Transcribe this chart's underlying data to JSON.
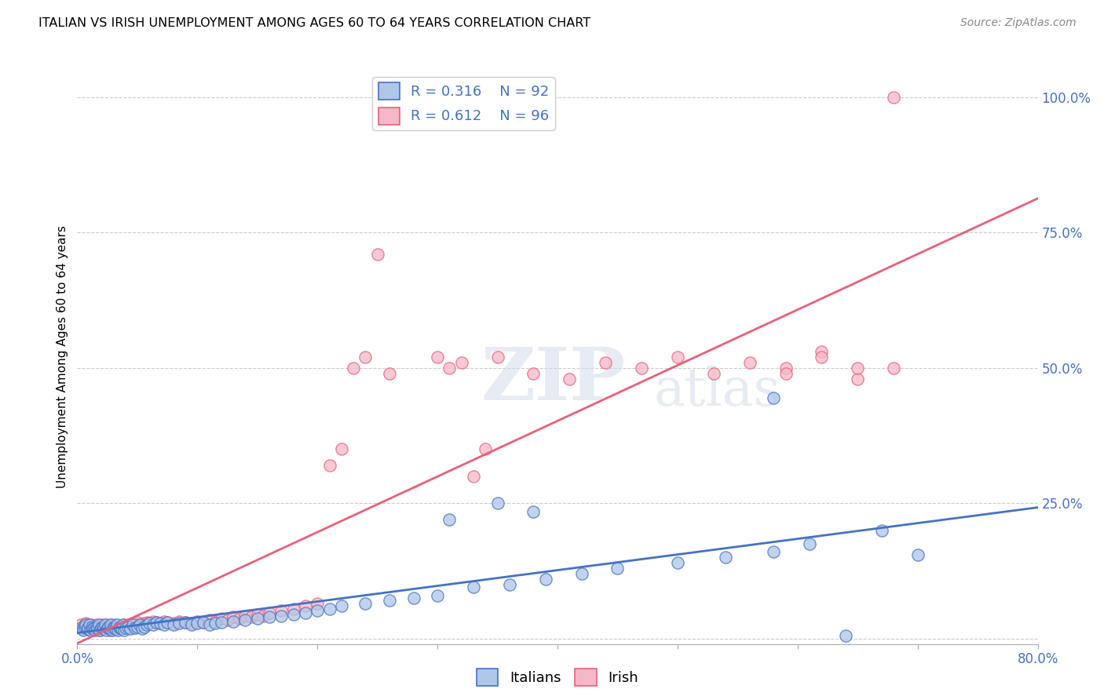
{
  "title": "ITALIAN VS IRISH UNEMPLOYMENT AMONG AGES 60 TO 64 YEARS CORRELATION CHART",
  "source": "Source: ZipAtlas.com",
  "ylabel": "Unemployment Among Ages 60 to 64 years",
  "xlim": [
    0.0,
    0.8
  ],
  "ylim": [
    -0.01,
    1.05
  ],
  "xticks": [
    0.0,
    0.1,
    0.2,
    0.3,
    0.4,
    0.5,
    0.6,
    0.7,
    0.8
  ],
  "xticklabels": [
    "0.0%",
    "",
    "",
    "",
    "",
    "",
    "",
    "",
    "80.0%"
  ],
  "ytick_positions": [
    0.0,
    0.25,
    0.5,
    0.75,
    1.0
  ],
  "yticklabels_right": [
    "",
    "25.0%",
    "50.0%",
    "75.0%",
    "100.0%"
  ],
  "legend_r_italian": "R = 0.316",
  "legend_n_italian": "N = 92",
  "legend_r_irish": "R = 0.612",
  "legend_n_irish": "N = 96",
  "italian_color": "#aec6e8",
  "irish_color": "#f4b8c8",
  "italian_edge_color": "#4472c4",
  "irish_edge_color": "#e8607a",
  "italian_line_color": "#4472c4",
  "irish_line_color": "#e8607a",
  "watermark_color": "#d0d8e8",
  "background_color": "#ffffff",
  "italian_x": [
    0.003,
    0.004,
    0.005,
    0.006,
    0.007,
    0.008,
    0.009,
    0.01,
    0.011,
    0.012,
    0.013,
    0.014,
    0.015,
    0.016,
    0.017,
    0.018,
    0.019,
    0.02,
    0.021,
    0.022,
    0.023,
    0.024,
    0.025,
    0.026,
    0.027,
    0.028,
    0.029,
    0.03,
    0.031,
    0.032,
    0.033,
    0.034,
    0.035,
    0.036,
    0.037,
    0.038,
    0.039,
    0.04,
    0.042,
    0.044,
    0.046,
    0.048,
    0.05,
    0.052,
    0.054,
    0.056,
    0.058,
    0.06,
    0.063,
    0.066,
    0.069,
    0.072,
    0.075,
    0.08,
    0.085,
    0.09,
    0.095,
    0.1,
    0.105,
    0.11,
    0.115,
    0.12,
    0.13,
    0.14,
    0.15,
    0.16,
    0.17,
    0.18,
    0.19,
    0.2,
    0.21,
    0.22,
    0.24,
    0.26,
    0.28,
    0.3,
    0.33,
    0.36,
    0.39,
    0.31,
    0.42,
    0.45,
    0.35,
    0.38,
    0.5,
    0.54,
    0.58,
    0.61,
    0.64,
    0.67,
    0.58,
    0.7
  ],
  "italian_y": [
    0.02,
    0.018,
    0.015,
    0.022,
    0.025,
    0.018,
    0.02,
    0.025,
    0.015,
    0.022,
    0.018,
    0.02,
    0.015,
    0.022,
    0.018,
    0.025,
    0.015,
    0.02,
    0.022,
    0.018,
    0.025,
    0.015,
    0.02,
    0.022,
    0.018,
    0.025,
    0.015,
    0.02,
    0.022,
    0.018,
    0.025,
    0.015,
    0.02,
    0.022,
    0.018,
    0.025,
    0.015,
    0.02,
    0.022,
    0.018,
    0.025,
    0.02,
    0.022,
    0.025,
    0.018,
    0.022,
    0.025,
    0.028,
    0.025,
    0.03,
    0.028,
    0.025,
    0.03,
    0.025,
    0.028,
    0.03,
    0.025,
    0.028,
    0.03,
    0.025,
    0.028,
    0.03,
    0.032,
    0.035,
    0.038,
    0.04,
    0.042,
    0.045,
    0.048,
    0.052,
    0.055,
    0.06,
    0.065,
    0.07,
    0.075,
    0.08,
    0.095,
    0.1,
    0.11,
    0.22,
    0.12,
    0.13,
    0.25,
    0.235,
    0.14,
    0.15,
    0.16,
    0.175,
    0.005,
    0.2,
    0.445,
    0.155
  ],
  "irish_x": [
    0.003,
    0.004,
    0.005,
    0.006,
    0.007,
    0.008,
    0.009,
    0.01,
    0.011,
    0.012,
    0.013,
    0.014,
    0.015,
    0.016,
    0.017,
    0.018,
    0.019,
    0.02,
    0.021,
    0.022,
    0.023,
    0.024,
    0.025,
    0.026,
    0.027,
    0.028,
    0.029,
    0.03,
    0.031,
    0.032,
    0.034,
    0.036,
    0.038,
    0.04,
    0.042,
    0.044,
    0.046,
    0.048,
    0.05,
    0.052,
    0.055,
    0.058,
    0.06,
    0.063,
    0.066,
    0.069,
    0.072,
    0.075,
    0.08,
    0.085,
    0.09,
    0.095,
    0.1,
    0.105,
    0.11,
    0.115,
    0.12,
    0.125,
    0.13,
    0.135,
    0.14,
    0.145,
    0.15,
    0.155,
    0.16,
    0.17,
    0.18,
    0.19,
    0.2,
    0.21,
    0.22,
    0.23,
    0.24,
    0.25,
    0.26,
    0.3,
    0.31,
    0.32,
    0.33,
    0.34,
    0.35,
    0.38,
    0.41,
    0.44,
    0.47,
    0.5,
    0.53,
    0.56,
    0.59,
    0.62,
    0.65,
    0.68,
    0.59,
    0.62,
    0.65,
    0.68
  ],
  "irish_y": [
    0.025,
    0.018,
    0.022,
    0.02,
    0.028,
    0.025,
    0.018,
    0.022,
    0.015,
    0.025,
    0.018,
    0.022,
    0.02,
    0.025,
    0.018,
    0.022,
    0.015,
    0.025,
    0.018,
    0.022,
    0.02,
    0.025,
    0.018,
    0.022,
    0.015,
    0.025,
    0.018,
    0.022,
    0.02,
    0.025,
    0.018,
    0.022,
    0.025,
    0.02,
    0.025,
    0.022,
    0.028,
    0.025,
    0.03,
    0.025,
    0.028,
    0.03,
    0.028,
    0.032,
    0.03,
    0.028,
    0.032,
    0.03,
    0.028,
    0.032,
    0.03,
    0.028,
    0.032,
    0.03,
    0.035,
    0.032,
    0.038,
    0.035,
    0.04,
    0.038,
    0.042,
    0.04,
    0.045,
    0.042,
    0.048,
    0.052,
    0.055,
    0.06,
    0.065,
    0.32,
    0.35,
    0.5,
    0.52,
    0.71,
    0.49,
    0.52,
    0.5,
    0.51,
    0.3,
    0.35,
    0.52,
    0.49,
    0.48,
    0.51,
    0.5,
    0.52,
    0.49,
    0.51,
    0.5,
    0.53,
    0.48,
    0.5,
    0.49,
    0.52,
    0.5,
    1.0
  ]
}
